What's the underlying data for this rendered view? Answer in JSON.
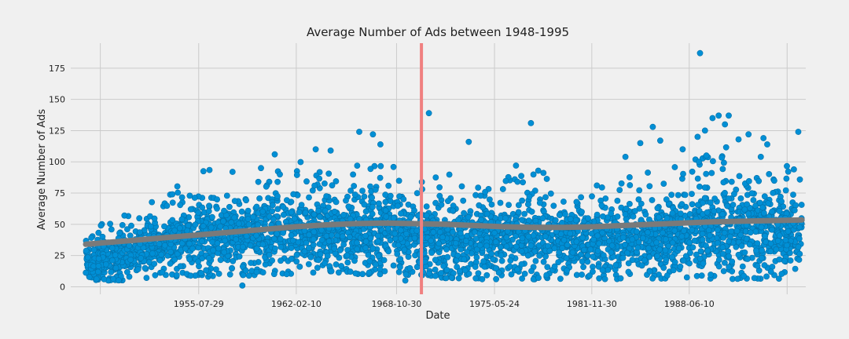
{
  "chart_data": {
    "type": "scatter",
    "title": "Average Number of Ads between 1948-1995",
    "xlabel": "Date",
    "ylabel": "Average Number of Ads",
    "x_ticks": [
      "1955-07-29",
      "1962-02-10",
      "1968-10-30",
      "1975-05-24",
      "1981-11-30",
      "1988-06-10"
    ],
    "y_ticks": [
      0,
      25,
      50,
      75,
      100,
      125,
      150,
      175
    ],
    "xlim": [
      "1947-01-01",
      "1996-04-01"
    ],
    "ylim": [
      -6,
      195
    ],
    "grid": true,
    "colors": {
      "points": "#008fd5",
      "trend": "#7a7a7a",
      "marker_line": "#f08080",
      "background": "#f0f0f0",
      "grid": "#cbcbcb"
    },
    "vertical_line": {
      "x": "1970-07-01"
    },
    "series": [
      {
        "kind": "scatter",
        "x_range": [
          "1948-01-01",
          "1995-12-31"
        ],
        "y_band_by_year": [
          [
            1948,
            5,
            45
          ],
          [
            1950,
            5,
            55
          ],
          [
            1952,
            6,
            65
          ],
          [
            1954,
            8,
            80
          ],
          [
            1956,
            8,
            95
          ],
          [
            1958,
            8,
            95
          ],
          [
            1960,
            10,
            100
          ],
          [
            1962,
            10,
            100
          ],
          [
            1964,
            10,
            100
          ],
          [
            1966,
            10,
            100
          ],
          [
            1968,
            10,
            100
          ],
          [
            1970,
            8,
            95
          ],
          [
            1972,
            7,
            90
          ],
          [
            1974,
            6,
            90
          ],
          [
            1976,
            6,
            90
          ],
          [
            1978,
            6,
            95
          ],
          [
            1980,
            6,
            90
          ],
          [
            1982,
            6,
            85
          ],
          [
            1984,
            6,
            90
          ],
          [
            1986,
            6,
            95
          ],
          [
            1988,
            6,
            100
          ],
          [
            1990,
            6,
            110
          ],
          [
            1992,
            6,
            115
          ],
          [
            1994,
            6,
            105
          ],
          [
            1995,
            6,
            100
          ]
        ],
        "outliers": [
          [
            "1960-09-01",
            106
          ],
          [
            "1963-06-01",
            110
          ],
          [
            "1964-06-01",
            109
          ],
          [
            "1966-05-01",
            124
          ],
          [
            "1967-04-01",
            122
          ],
          [
            "1967-10-01",
            114
          ],
          [
            "1971-01-01",
            139
          ],
          [
            "1973-09-01",
            116
          ],
          [
            "1976-11-01",
            97
          ],
          [
            "1977-11-01",
            131
          ],
          [
            "1984-03-01",
            104
          ],
          [
            "1985-03-01",
            115
          ],
          [
            "1986-01-01",
            128
          ],
          [
            "1986-07-01",
            117
          ],
          [
            "1988-01-01",
            110
          ],
          [
            "1989-01-01",
            120
          ],
          [
            "1989-03-01",
            187
          ],
          [
            "1989-07-01",
            125
          ],
          [
            "1990-01-01",
            135
          ],
          [
            "1990-06-01",
            137
          ],
          [
            "1990-11-01",
            130
          ],
          [
            "1991-02-01",
            137
          ],
          [
            "1991-10-01",
            118
          ],
          [
            "1992-06-01",
            122
          ],
          [
            "1993-06-01",
            119
          ],
          [
            "1993-09-01",
            114
          ],
          [
            "1995-10-01",
            124
          ],
          [
            "1958-07-01",
            1
          ],
          [
            "1969-06-01",
            5
          ]
        ]
      },
      {
        "kind": "trend",
        "points": [
          [
            "1948-01-01",
            34
          ],
          [
            "1950-01-01",
            36
          ],
          [
            "1952-01-01",
            38
          ],
          [
            "1954-01-01",
            40
          ],
          [
            "1956-01-01",
            42
          ],
          [
            "1958-01-01",
            44
          ],
          [
            "1960-01-01",
            46
          ],
          [
            "1962-01-01",
            48
          ],
          [
            "1964-01-01",
            49.5
          ],
          [
            "1966-01-01",
            50.5
          ],
          [
            "1968-01-01",
            51
          ],
          [
            "1970-01-01",
            50.5
          ],
          [
            "1972-01-01",
            50
          ],
          [
            "1974-01-01",
            49
          ],
          [
            "1976-01-01",
            48
          ],
          [
            "1978-01-01",
            47.5
          ],
          [
            "1980-01-01",
            47.5
          ],
          [
            "1982-01-01",
            48
          ],
          [
            "1984-01-01",
            49
          ],
          [
            "1986-01-01",
            50
          ],
          [
            "1988-01-01",
            51
          ],
          [
            "1990-01-01",
            52
          ],
          [
            "1992-01-01",
            52.5
          ],
          [
            "1994-01-01",
            53
          ],
          [
            "1995-12-31",
            53.5
          ]
        ]
      }
    ]
  }
}
